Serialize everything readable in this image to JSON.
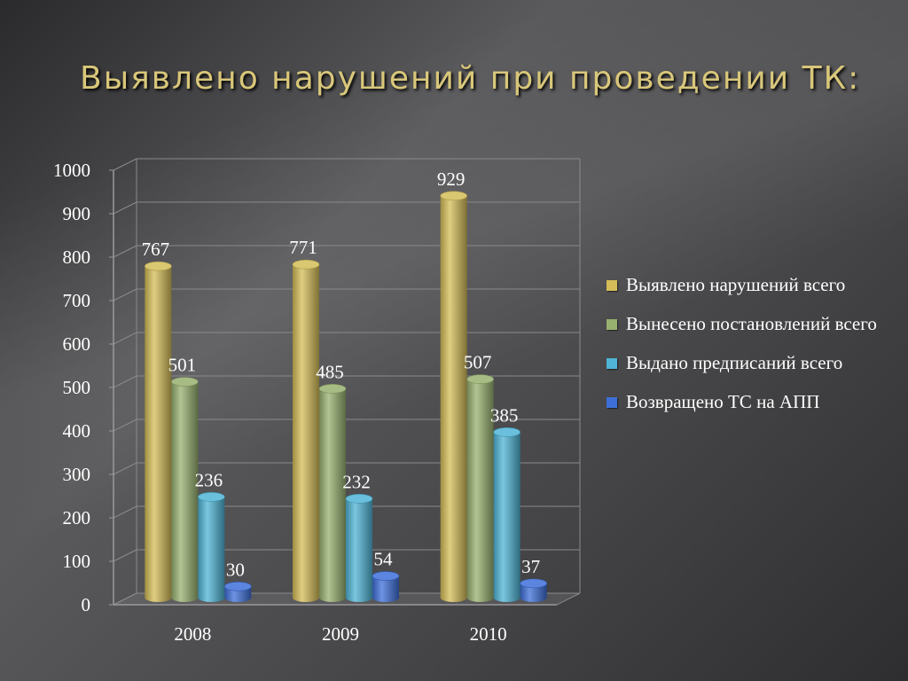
{
  "title": "Выявлено нарушений при проведении ТК:",
  "chart_data": {
    "type": "bar",
    "categories": [
      "2008",
      "2009",
      "2010"
    ],
    "ylim": [
      0,
      1000
    ],
    "yticks": [
      "0",
      "100",
      "200",
      "300",
      "400",
      "500",
      "600",
      "700",
      "800",
      "900",
      "1000"
    ],
    "grid": true,
    "legend_position": "right",
    "series": [
      {
        "name": "Выявлено нарушений всего",
        "values": [
          767,
          771,
          929
        ],
        "color": "#d4bd58"
      },
      {
        "name": "Вынесено постановлений всего",
        "values": [
          501,
          485,
          507
        ],
        "color": "#98b06f"
      },
      {
        "name": "Выдано предписаний всего",
        "values": [
          236,
          232,
          385
        ],
        "color": "#4fb4d6"
      },
      {
        "name": "Возвращено ТС на АПП",
        "values": [
          30,
          54,
          37
        ],
        "color": "#3e6fd8"
      }
    ]
  }
}
